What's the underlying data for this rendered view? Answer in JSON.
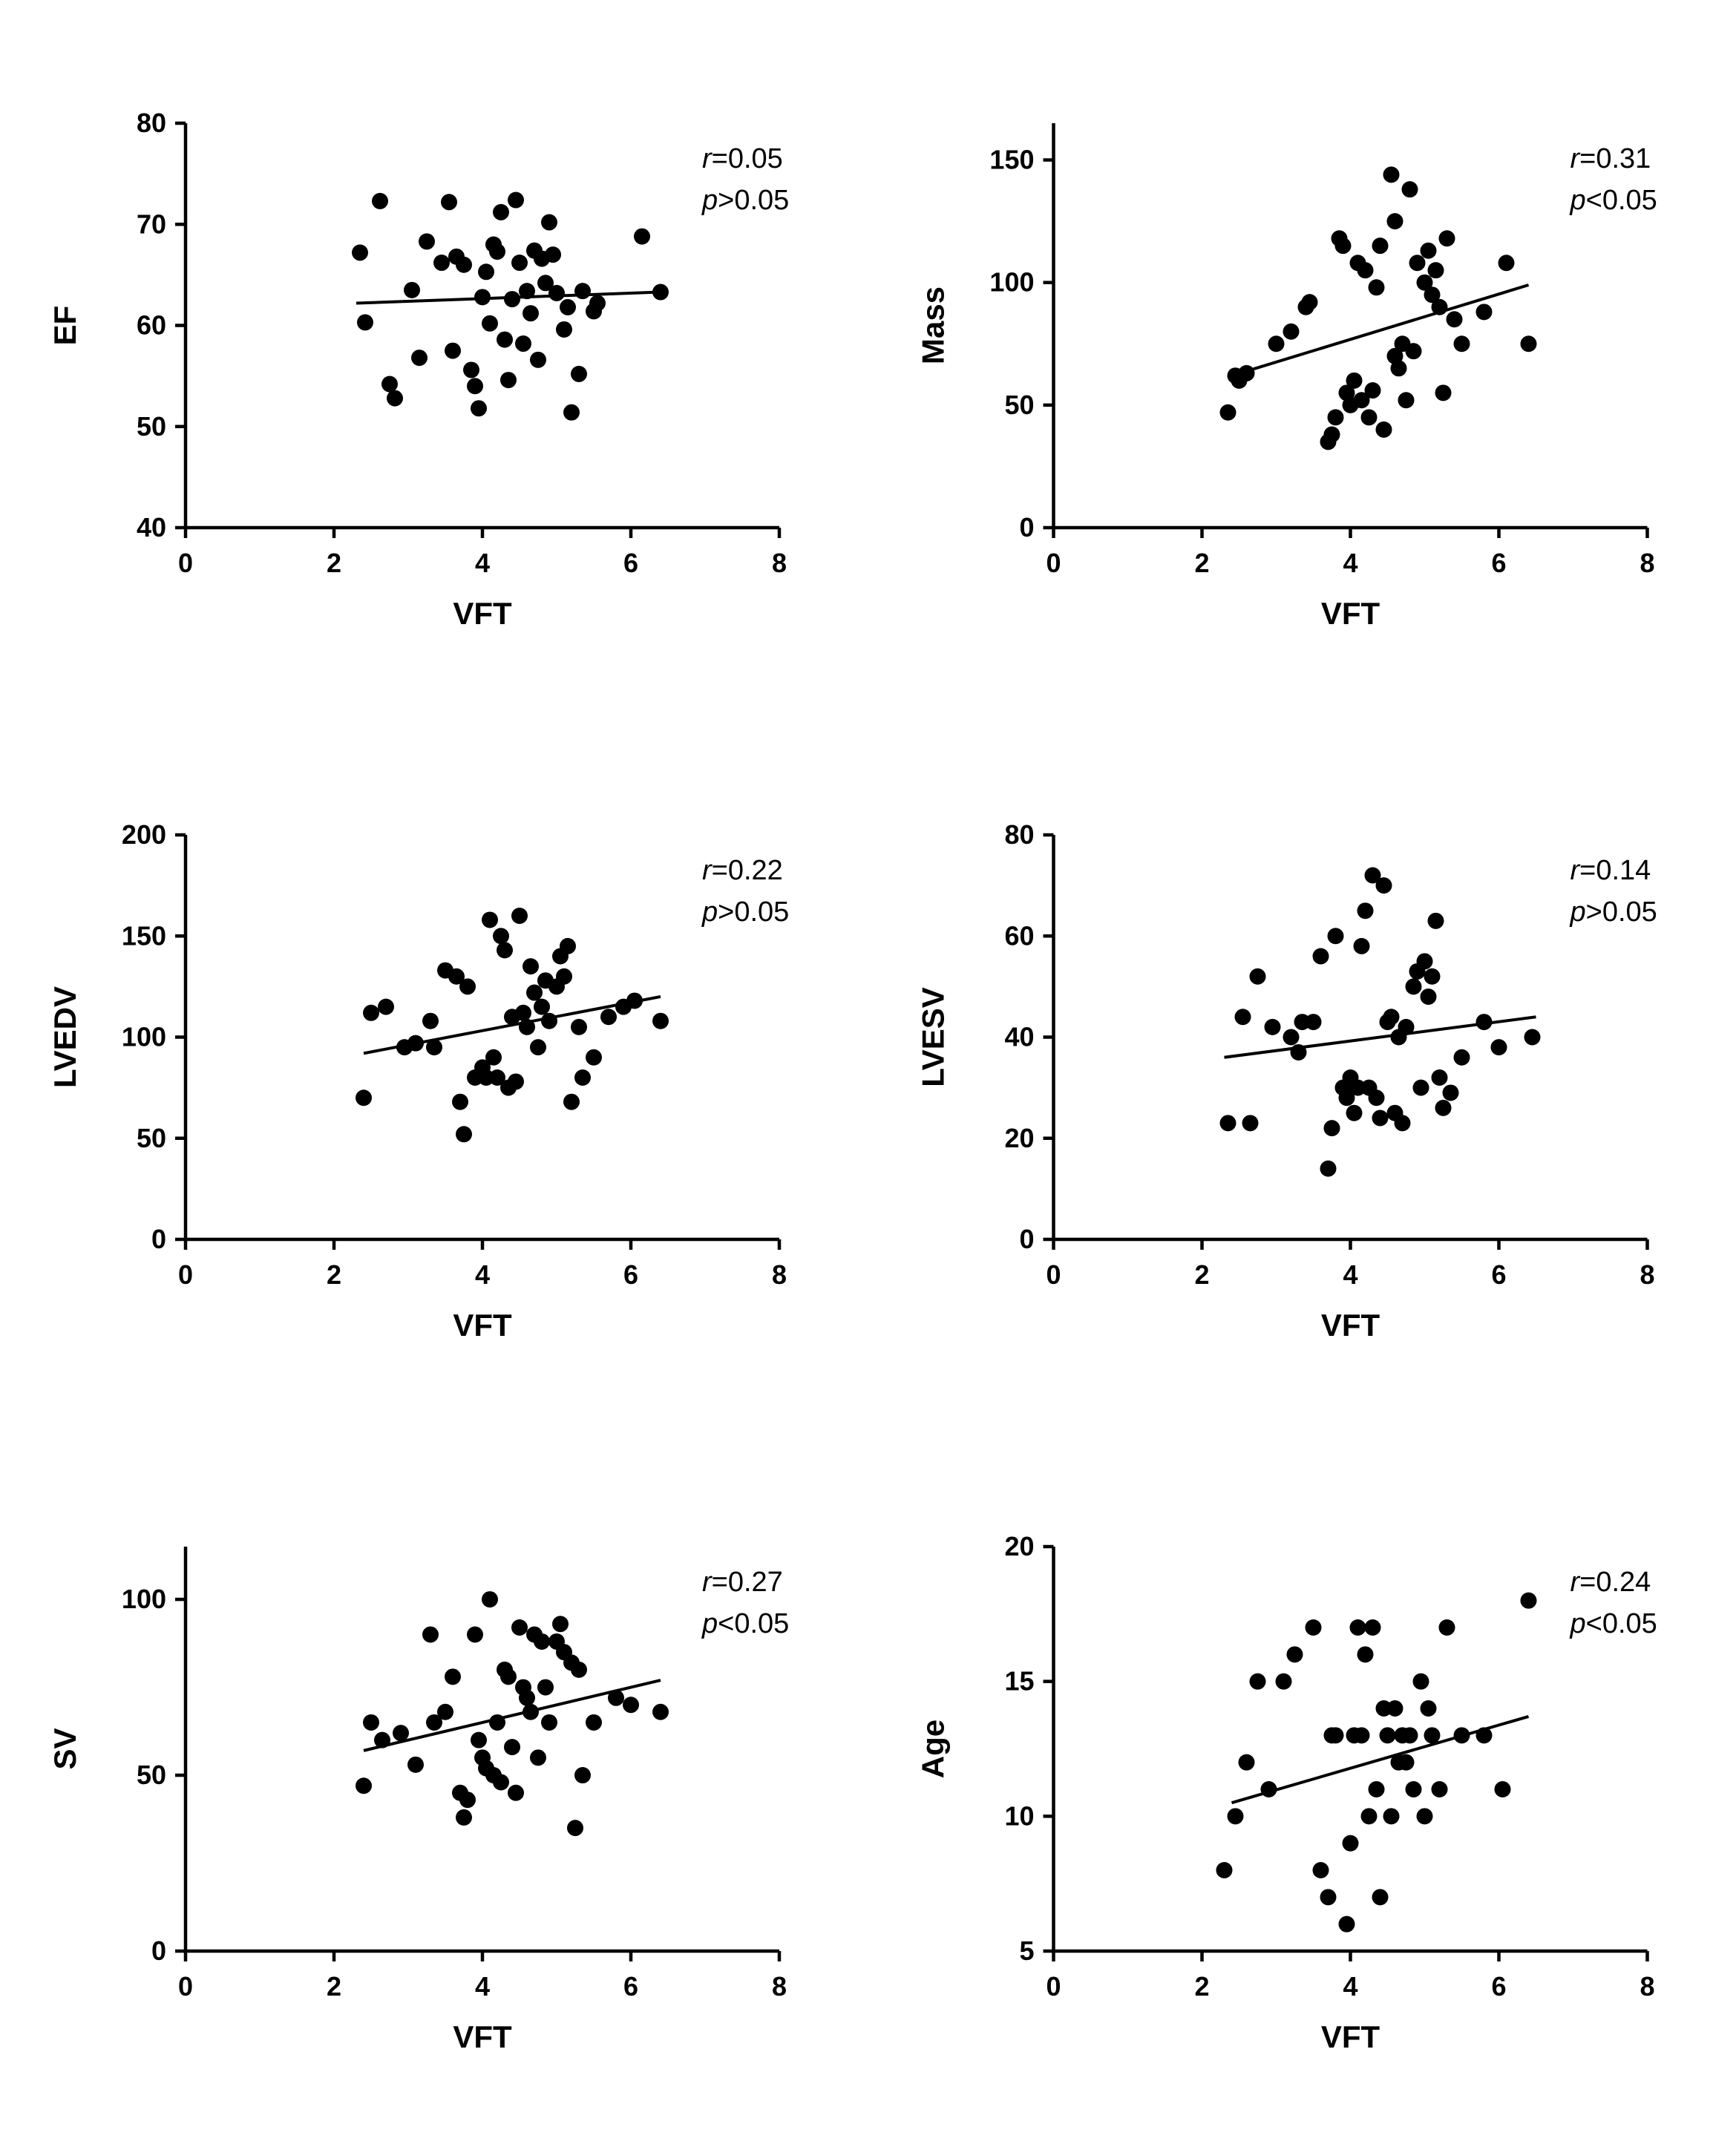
{
  "figure": {
    "background": "#ffffff",
    "point_color": "#000000",
    "axis_color": "#000000"
  },
  "chart_data": [
    {
      "type": "scatter",
      "ylabel": "EF",
      "xlabel": "VFT",
      "xlim": [
        0,
        8
      ],
      "ylim": [
        40,
        80
      ],
      "xticks": [
        0,
        2,
        4,
        6,
        8
      ],
      "yticks": [
        40,
        50,
        60,
        70,
        80
      ],
      "annotation": {
        "line1": "r=0.05",
        "line2": "p>0.05"
      },
      "trend": [
        [
          2.3,
          62.2
        ],
        [
          6.4,
          63.3
        ]
      ],
      "points": [
        [
          2.35,
          67.2
        ],
        [
          2.42,
          60.3
        ],
        [
          2.62,
          72.3
        ],
        [
          2.75,
          54.2
        ],
        [
          2.82,
          52.8
        ],
        [
          3.05,
          63.5
        ],
        [
          3.15,
          56.8
        ],
        [
          3.25,
          68.3
        ],
        [
          3.45,
          66.2
        ],
        [
          3.55,
          72.2
        ],
        [
          3.6,
          57.5
        ],
        [
          3.65,
          66.8
        ],
        [
          3.75,
          66.0
        ],
        [
          3.85,
          55.6
        ],
        [
          3.9,
          54.0
        ],
        [
          3.95,
          51.8
        ],
        [
          4.0,
          62.8
        ],
        [
          4.05,
          65.3
        ],
        [
          4.1,
          60.2
        ],
        [
          4.15,
          68.0
        ],
        [
          4.2,
          67.3
        ],
        [
          4.25,
          71.2
        ],
        [
          4.3,
          58.6
        ],
        [
          4.35,
          54.6
        ],
        [
          4.4,
          62.6
        ],
        [
          4.45,
          72.4
        ],
        [
          4.5,
          66.2
        ],
        [
          4.55,
          58.2
        ],
        [
          4.6,
          63.4
        ],
        [
          4.65,
          61.2
        ],
        [
          4.7,
          67.4
        ],
        [
          4.75,
          56.6
        ],
        [
          4.8,
          66.6
        ],
        [
          4.85,
          64.2
        ],
        [
          4.9,
          70.2
        ],
        [
          4.95,
          67.0
        ],
        [
          5.0,
          63.2
        ],
        [
          5.1,
          59.6
        ],
        [
          5.15,
          61.8
        ],
        [
          5.2,
          51.4
        ],
        [
          5.3,
          55.2
        ],
        [
          5.35,
          63.4
        ],
        [
          5.5,
          61.4
        ],
        [
          5.55,
          62.2
        ],
        [
          6.15,
          68.8
        ],
        [
          6.4,
          63.3
        ]
      ]
    },
    {
      "type": "scatter",
      "ylabel": "Mass",
      "xlabel": "VFT",
      "xlim": [
        0,
        8
      ],
      "ylim": [
        0,
        165
      ],
      "xticks": [
        0,
        2,
        4,
        6,
        8
      ],
      "yticks": [
        0,
        50,
        100,
        150
      ],
      "annotation": {
        "line1": "r=0.31",
        "line2": "p<0.05"
      },
      "trend": [
        [
          2.4,
          62
        ],
        [
          6.4,
          99
        ]
      ],
      "points": [
        [
          2.35,
          47
        ],
        [
          2.45,
          62
        ],
        [
          2.5,
          60
        ],
        [
          2.6,
          63
        ],
        [
          3.0,
          75
        ],
        [
          3.2,
          80
        ],
        [
          3.4,
          90
        ],
        [
          3.45,
          92
        ],
        [
          3.7,
          35
        ],
        [
          3.75,
          38
        ],
        [
          3.8,
          45
        ],
        [
          3.85,
          118
        ],
        [
          3.9,
          115
        ],
        [
          3.95,
          55
        ],
        [
          4.0,
          50
        ],
        [
          4.05,
          60
        ],
        [
          4.1,
          108
        ],
        [
          4.15,
          52
        ],
        [
          4.2,
          105
        ],
        [
          4.25,
          45
        ],
        [
          4.3,
          56
        ],
        [
          4.35,
          98
        ],
        [
          4.4,
          115
        ],
        [
          4.45,
          40
        ],
        [
          4.55,
          144
        ],
        [
          4.6,
          125
        ],
        [
          4.6,
          70
        ],
        [
          4.65,
          65
        ],
        [
          4.7,
          75
        ],
        [
          4.75,
          52
        ],
        [
          4.8,
          138
        ],
        [
          4.85,
          72
        ],
        [
          4.9,
          108
        ],
        [
          5.0,
          100
        ],
        [
          5.05,
          113
        ],
        [
          5.1,
          95
        ],
        [
          5.15,
          105
        ],
        [
          5.2,
          90
        ],
        [
          5.25,
          55
        ],
        [
          5.3,
          118
        ],
        [
          5.4,
          85
        ],
        [
          5.5,
          75
        ],
        [
          5.8,
          88
        ],
        [
          6.1,
          108
        ],
        [
          6.4,
          75
        ]
      ]
    },
    {
      "type": "scatter",
      "ylabel": "LVEDV",
      "xlabel": "VFT",
      "xlim": [
        0,
        8
      ],
      "ylim": [
        0,
        200
      ],
      "xticks": [
        0,
        2,
        4,
        6,
        8
      ],
      "yticks": [
        0,
        50,
        100,
        150,
        200
      ],
      "annotation": {
        "line1": "r=0.22",
        "line2": "p>0.05"
      },
      "trend": [
        [
          2.4,
          92
        ],
        [
          6.4,
          120
        ]
      ],
      "points": [
        [
          2.4,
          70
        ],
        [
          2.5,
          112
        ],
        [
          2.7,
          115
        ],
        [
          2.95,
          95
        ],
        [
          3.1,
          97
        ],
        [
          3.3,
          108
        ],
        [
          3.35,
          95
        ],
        [
          3.5,
          133
        ],
        [
          3.65,
          130
        ],
        [
          3.7,
          68
        ],
        [
          3.75,
          52
        ],
        [
          3.8,
          125
        ],
        [
          3.9,
          80
        ],
        [
          4.0,
          85
        ],
        [
          4.05,
          80
        ],
        [
          4.1,
          158
        ],
        [
          4.15,
          90
        ],
        [
          4.2,
          80
        ],
        [
          4.25,
          150
        ],
        [
          4.3,
          143
        ],
        [
          4.35,
          75
        ],
        [
          4.4,
          110
        ],
        [
          4.45,
          78
        ],
        [
          4.5,
          160
        ],
        [
          4.55,
          112
        ],
        [
          4.6,
          105
        ],
        [
          4.65,
          135
        ],
        [
          4.7,
          122
        ],
        [
          4.75,
          95
        ],
        [
          4.8,
          115
        ],
        [
          4.85,
          128
        ],
        [
          4.9,
          108
        ],
        [
          5.0,
          125
        ],
        [
          5.05,
          140
        ],
        [
          5.1,
          130
        ],
        [
          5.15,
          145
        ],
        [
          5.2,
          68
        ],
        [
          5.3,
          105
        ],
        [
          5.35,
          80
        ],
        [
          5.5,
          90
        ],
        [
          5.7,
          110
        ],
        [
          5.9,
          115
        ],
        [
          6.05,
          118
        ],
        [
          6.4,
          108
        ]
      ]
    },
    {
      "type": "scatter",
      "ylabel": "LVESV",
      "xlabel": "VFT",
      "xlim": [
        0,
        8
      ],
      "ylim": [
        0,
        80
      ],
      "xticks": [
        0,
        2,
        4,
        6,
        8
      ],
      "yticks": [
        0,
        20,
        40,
        60,
        80
      ],
      "annotation": {
        "line1": "r=0.14",
        "line2": "p>0.05"
      },
      "trend": [
        [
          2.3,
          36
        ],
        [
          6.5,
          44
        ]
      ],
      "points": [
        [
          2.35,
          23
        ],
        [
          2.55,
          44
        ],
        [
          2.65,
          23
        ],
        [
          2.75,
          52
        ],
        [
          2.95,
          42
        ],
        [
          3.2,
          40
        ],
        [
          3.3,
          37
        ],
        [
          3.35,
          43
        ],
        [
          3.5,
          43
        ],
        [
          3.6,
          56
        ],
        [
          3.7,
          14
        ],
        [
          3.75,
          22
        ],
        [
          3.8,
          60
        ],
        [
          3.9,
          30
        ],
        [
          3.95,
          28
        ],
        [
          4.0,
          32
        ],
        [
          4.05,
          25
        ],
        [
          4.1,
          30
        ],
        [
          4.15,
          58
        ],
        [
          4.2,
          65
        ],
        [
          4.25,
          30
        ],
        [
          4.3,
          72
        ],
        [
          4.35,
          28
        ],
        [
          4.4,
          24
        ],
        [
          4.45,
          70
        ],
        [
          4.5,
          43
        ],
        [
          4.55,
          44
        ],
        [
          4.6,
          25
        ],
        [
          4.65,
          40
        ],
        [
          4.7,
          23
        ],
        [
          4.75,
          42
        ],
        [
          4.85,
          50
        ],
        [
          4.9,
          53
        ],
        [
          4.95,
          30
        ],
        [
          5.0,
          55
        ],
        [
          5.05,
          48
        ],
        [
          5.1,
          52
        ],
        [
          5.15,
          63
        ],
        [
          5.2,
          32
        ],
        [
          5.25,
          26
        ],
        [
          5.35,
          29
        ],
        [
          5.5,
          36
        ],
        [
          5.8,
          43
        ],
        [
          6.0,
          38
        ],
        [
          6.45,
          40
        ]
      ]
    },
    {
      "type": "scatter",
      "ylabel": "SV",
      "xlabel": "VFT",
      "xlim": [
        0,
        8
      ],
      "ylim": [
        0,
        115
      ],
      "xticks": [
        0,
        2,
        4,
        6,
        8
      ],
      "yticks": [
        0,
        50,
        100
      ],
      "annotation": {
        "line1": "r=0.27",
        "line2": "p<0.05"
      },
      "trend": [
        [
          2.4,
          57
        ],
        [
          6.4,
          77
        ]
      ],
      "points": [
        [
          2.4,
          47
        ],
        [
          2.5,
          65
        ],
        [
          2.65,
          60
        ],
        [
          2.9,
          62
        ],
        [
          3.1,
          53
        ],
        [
          3.3,
          90
        ],
        [
          3.35,
          65
        ],
        [
          3.5,
          68
        ],
        [
          3.6,
          78
        ],
        [
          3.7,
          45
        ],
        [
          3.75,
          38
        ],
        [
          3.8,
          43
        ],
        [
          3.9,
          90
        ],
        [
          3.95,
          60
        ],
        [
          4.0,
          55
        ],
        [
          4.05,
          52
        ],
        [
          4.1,
          100
        ],
        [
          4.15,
          50
        ],
        [
          4.2,
          65
        ],
        [
          4.25,
          48
        ],
        [
          4.3,
          80
        ],
        [
          4.35,
          78
        ],
        [
          4.4,
          58
        ],
        [
          4.45,
          45
        ],
        [
          4.5,
          92
        ],
        [
          4.55,
          75
        ],
        [
          4.6,
          72
        ],
        [
          4.65,
          68
        ],
        [
          4.7,
          90
        ],
        [
          4.75,
          55
        ],
        [
          4.8,
          88
        ],
        [
          4.85,
          75
        ],
        [
          4.9,
          65
        ],
        [
          5.0,
          88
        ],
        [
          5.05,
          93
        ],
        [
          5.1,
          85
        ],
        [
          5.2,
          82
        ],
        [
          5.25,
          35
        ],
        [
          5.3,
          80
        ],
        [
          5.35,
          50
        ],
        [
          5.5,
          65
        ],
        [
          5.8,
          72
        ],
        [
          6.0,
          70
        ],
        [
          6.4,
          68
        ]
      ]
    },
    {
      "type": "scatter",
      "ylabel": "Age",
      "xlabel": "VFT",
      "xlim": [
        0,
        8
      ],
      "ylim": [
        5,
        20
      ],
      "xticks": [
        0,
        2,
        4,
        6,
        8
      ],
      "yticks": [
        5,
        10,
        15,
        20
      ],
      "annotation": {
        "line1": "r=0.24",
        "line2": "p<0.05"
      },
      "trend": [
        [
          2.4,
          10.5
        ],
        [
          6.4,
          13.7
        ]
      ],
      "points": [
        [
          2.3,
          8
        ],
        [
          2.45,
          10
        ],
        [
          2.6,
          12
        ],
        [
          2.75,
          15
        ],
        [
          2.9,
          11
        ],
        [
          3.1,
          15
        ],
        [
          3.25,
          16
        ],
        [
          3.5,
          17
        ],
        [
          3.6,
          8
        ],
        [
          3.7,
          7
        ],
        [
          3.75,
          13
        ],
        [
          3.8,
          13
        ],
        [
          3.95,
          6
        ],
        [
          4.0,
          9
        ],
        [
          4.05,
          13
        ],
        [
          4.1,
          17
        ],
        [
          4.15,
          13
        ],
        [
          4.2,
          16
        ],
        [
          4.25,
          10
        ],
        [
          4.3,
          17
        ],
        [
          4.35,
          11
        ],
        [
          4.4,
          7
        ],
        [
          4.45,
          14
        ],
        [
          4.5,
          13
        ],
        [
          4.55,
          10
        ],
        [
          4.6,
          14
        ],
        [
          4.65,
          12
        ],
        [
          4.7,
          13
        ],
        [
          4.75,
          12
        ],
        [
          4.8,
          13
        ],
        [
          4.85,
          11
        ],
        [
          4.95,
          15
        ],
        [
          5.0,
          10
        ],
        [
          5.05,
          14
        ],
        [
          5.1,
          13
        ],
        [
          5.2,
          11
        ],
        [
          5.3,
          17
        ],
        [
          5.5,
          13
        ],
        [
          5.8,
          13
        ],
        [
          6.05,
          11
        ],
        [
          6.4,
          18
        ]
      ]
    }
  ]
}
